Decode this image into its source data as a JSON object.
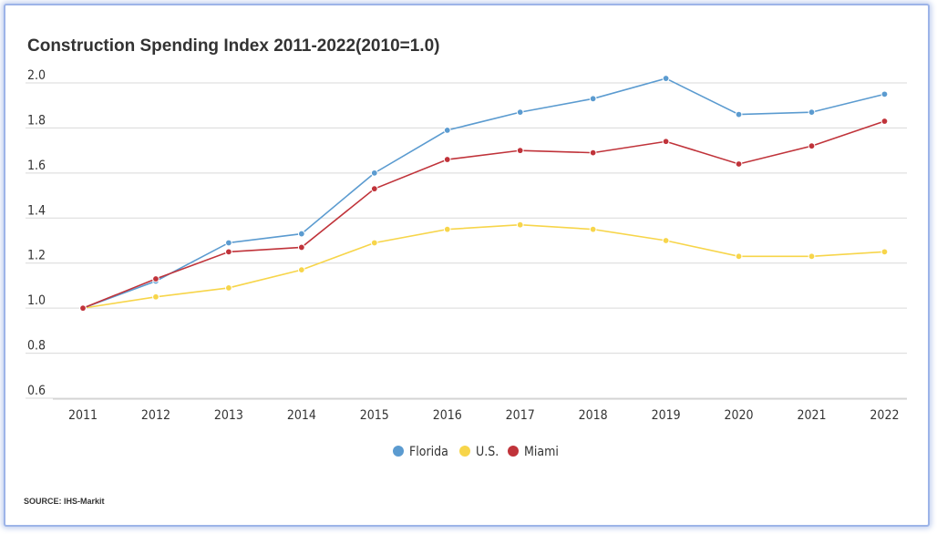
{
  "chart_title": "Construction Spending Index 2011-2022(2010=1.0)",
  "source_text": "SOURCE: IHS-Markit",
  "chart_data": {
    "type": "line",
    "title": "Construction Spending Index 2011-2022(2010=1.0)",
    "xlabel": "",
    "ylabel": "",
    "categories": [
      "2011",
      "2012",
      "2013",
      "2014",
      "2015",
      "2016",
      "2017",
      "2018",
      "2019",
      "2020",
      "2021",
      "2022"
    ],
    "y_ticks": [
      "2.0",
      "1.8",
      "1.6",
      "1.4",
      "1.2",
      "1.0",
      "0.8",
      "0.6"
    ],
    "ylim": [
      0.6,
      2.0
    ],
    "grid": true,
    "legend_position": "bottom",
    "series": [
      {
        "name": "Florida",
        "color": "#5b9bd0",
        "values": [
          1.0,
          1.12,
          1.29,
          1.33,
          1.6,
          1.79,
          1.87,
          1.93,
          2.02,
          1.86,
          1.87,
          1.95
        ]
      },
      {
        "name": "U.S.",
        "color": "#f7d54a",
        "values": [
          1.0,
          1.05,
          1.09,
          1.17,
          1.29,
          1.35,
          1.37,
          1.35,
          1.3,
          1.23,
          1.23,
          1.25
        ]
      },
      {
        "name": "Miami",
        "color": "#c0333a",
        "values": [
          1.0,
          1.13,
          1.25,
          1.27,
          1.53,
          1.66,
          1.7,
          1.69,
          1.74,
          1.64,
          1.72,
          1.83
        ]
      }
    ]
  }
}
